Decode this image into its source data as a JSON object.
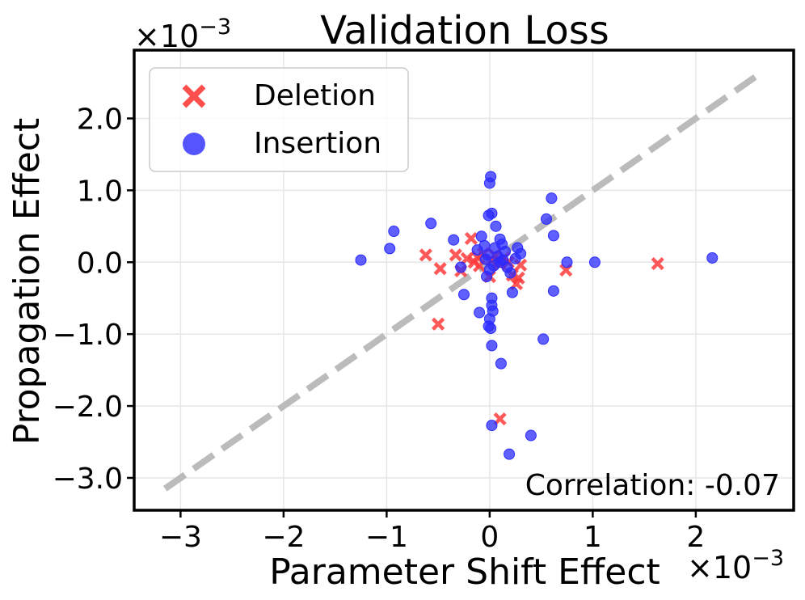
{
  "chart_data": {
    "type": "scatter",
    "title": "Validation Loss",
    "xlabel": "Parameter Shift Effect",
    "ylabel": "Propagation Effect",
    "x_scale_label": "×10",
    "y_scale_label": "×10",
    "scale_exponent": "−3",
    "xlim": [
      -3.45,
      2.95
    ],
    "ylim": [
      -3.45,
      2.95
    ],
    "x_ticks": [
      -3,
      -2,
      -1,
      0,
      1,
      2
    ],
    "x_tick_labels": [
      "−3",
      "−2",
      "−1",
      "0",
      "1",
      "2"
    ],
    "y_ticks": [
      -3,
      -2,
      -1,
      0,
      1,
      2
    ],
    "y_tick_labels": [
      "−3.0",
      "−2.0",
      "−1.0",
      "0.0",
      "1.0",
      "2.0"
    ],
    "grid": true,
    "legend_position": "top-left",
    "annotation": "Correlation: -0.07",
    "reference_line": {
      "style": "dashed",
      "color": "#bbbbbb",
      "from": [
        -3.15,
        -3.15
      ],
      "to": [
        2.65,
        2.65
      ]
    },
    "series": [
      {
        "name": "Deletion",
        "marker": "x",
        "color": "#ff3b3b",
        "points": [
          [
            -0.62,
            0.1
          ],
          [
            -0.48,
            -0.09
          ],
          [
            -0.5,
            -0.86
          ],
          [
            -0.33,
            0.1
          ],
          [
            -0.28,
            -0.12
          ],
          [
            -0.22,
            0.05
          ],
          [
            -0.18,
            0.33
          ],
          [
            -0.15,
            0.0
          ],
          [
            -0.12,
            0.07
          ],
          [
            -0.1,
            -0.05
          ],
          [
            -0.06,
            0.12
          ],
          [
            0.0,
            -0.2
          ],
          [
            0.02,
            0.03
          ],
          [
            0.05,
            0.1
          ],
          [
            0.1,
            -0.03
          ],
          [
            0.14,
            0.06
          ],
          [
            0.18,
            0.0
          ],
          [
            0.22,
            -0.18
          ],
          [
            0.26,
            -0.3
          ],
          [
            0.28,
            -0.22
          ],
          [
            0.3,
            -0.04
          ],
          [
            0.74,
            -0.11
          ],
          [
            1.63,
            -0.02
          ],
          [
            0.1,
            -2.18
          ],
          [
            0.08,
            0.0
          ]
        ]
      },
      {
        "name": "Insertion",
        "marker": "o",
        "color": "#2b2bff",
        "points": [
          [
            -1.25,
            0.03
          ],
          [
            -0.97,
            0.19
          ],
          [
            -0.93,
            0.43
          ],
          [
            -0.57,
            0.54
          ],
          [
            -0.35,
            0.31
          ],
          [
            -0.28,
            -0.07
          ],
          [
            -0.25,
            -0.45
          ],
          [
            -0.1,
            -0.7
          ],
          [
            -0.12,
            0.17
          ],
          [
            -0.08,
            0.36
          ],
          [
            -0.05,
            0.23
          ],
          [
            -0.03,
            -0.2
          ],
          [
            -0.02,
            0.1
          ],
          [
            0.0,
            -0.1
          ],
          [
            0.01,
            1.19
          ],
          [
            0.0,
            1.1
          ],
          [
            0.02,
            0.68
          ],
          [
            -0.01,
            0.65
          ],
          [
            0.02,
            -0.5
          ],
          [
            0.02,
            -0.6
          ],
          [
            0.03,
            -0.68
          ],
          [
            0.0,
            -0.79
          ],
          [
            -0.01,
            -0.89
          ],
          [
            0.01,
            -0.92
          ],
          [
            0.02,
            -1.16
          ],
          [
            0.02,
            -2.27
          ],
          [
            0.1,
            0.0
          ],
          [
            0.06,
            0.5
          ],
          [
            0.1,
            0.32
          ],
          [
            0.12,
            0.25
          ],
          [
            0.15,
            0.15
          ],
          [
            0.17,
            -0.07
          ],
          [
            0.2,
            -0.15
          ],
          [
            0.22,
            -0.42
          ],
          [
            0.25,
            0.05
          ],
          [
            0.3,
            0.12
          ],
          [
            0.27,
            0.2
          ],
          [
            0.11,
            -1.41
          ],
          [
            0.19,
            -2.67
          ],
          [
            0.4,
            -2.41
          ],
          [
            0.52,
            -1.07
          ],
          [
            0.55,
            0.6
          ],
          [
            0.6,
            0.89
          ],
          [
            0.62,
            0.37
          ],
          [
            0.62,
            -0.4
          ],
          [
            0.75,
            0.0
          ],
          [
            1.02,
            0.0
          ],
          [
            2.16,
            0.06
          ],
          [
            0.05,
            0.2
          ],
          [
            -0.04,
            0.04
          ],
          [
            0.04,
            -0.05
          ],
          [
            0.08,
            0.08
          ],
          [
            0.13,
            0.03
          ]
        ]
      }
    ]
  }
}
